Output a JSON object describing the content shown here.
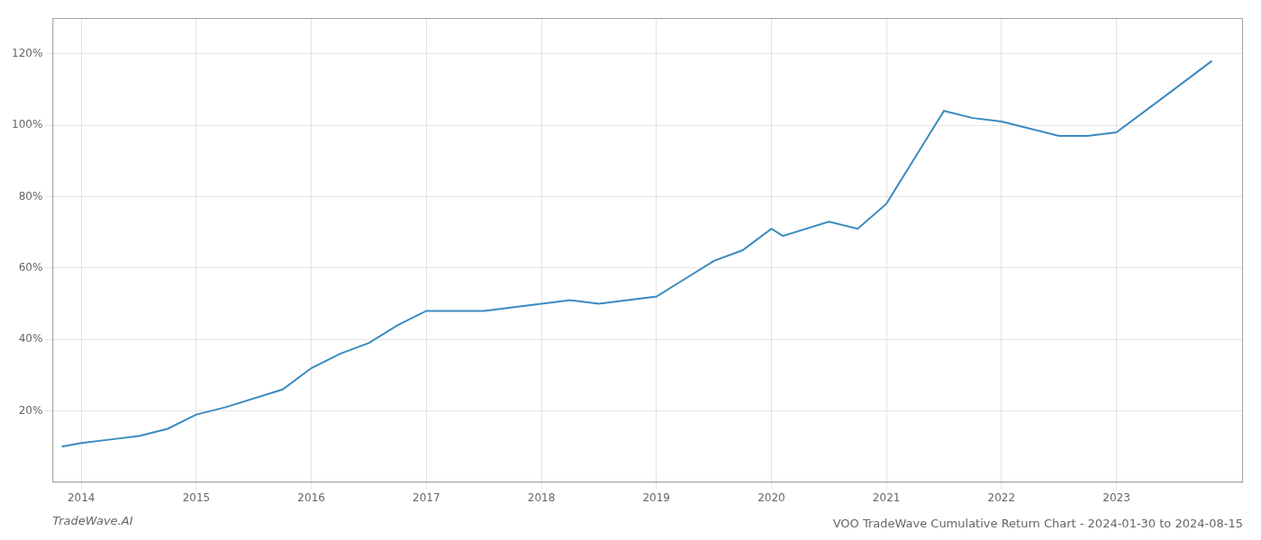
{
  "chart_data": {
    "type": "line",
    "title": "VOO TradeWave Cumulative Return Chart - 2024-01-30 to 2024-08-15",
    "annotations": [
      "TradeWave.AI"
    ],
    "x": [
      2013.83,
      2014.0,
      2014.25,
      2014.5,
      2014.75,
      2015.0,
      2015.25,
      2015.75,
      2016.0,
      2016.25,
      2016.5,
      2016.75,
      2017.0,
      2017.25,
      2017.5,
      2017.75,
      2018.0,
      2018.25,
      2018.5,
      2019.0,
      2019.25,
      2019.5,
      2019.75,
      2020.0,
      2020.1,
      2020.5,
      2020.75,
      2021.0,
      2021.25,
      2021.5,
      2021.75,
      2022.0,
      2022.25,
      2022.5,
      2022.75,
      2023.0,
      2023.5,
      2023.83
    ],
    "values": [
      10,
      11,
      12,
      13,
      15,
      19,
      21,
      26,
      32,
      36,
      39,
      44,
      48,
      48,
      48,
      49,
      50,
      51,
      50,
      52,
      57,
      62,
      65,
      71,
      69,
      73,
      71,
      78,
      91,
      104,
      102,
      101,
      99,
      97,
      97,
      98,
      110,
      118
    ],
    "color": "#3a8abf",
    "xlim": [
      2013.75,
      2024.1
    ],
    "xticks": [
      2014,
      2015,
      2016,
      2017,
      2018,
      2019,
      2020,
      2021,
      2022,
      2023
    ],
    "ylim": [
      0,
      130
    ],
    "yticks": [
      {
        "value": 20,
        "label": "20%"
      },
      {
        "value": 40,
        "label": "40%"
      },
      {
        "value": 60,
        "label": "60%"
      },
      {
        "value": 80,
        "label": "80%"
      },
      {
        "value": 100,
        "label": "100%"
      },
      {
        "value": 120,
        "label": "120%"
      }
    ],
    "grid": true
  }
}
